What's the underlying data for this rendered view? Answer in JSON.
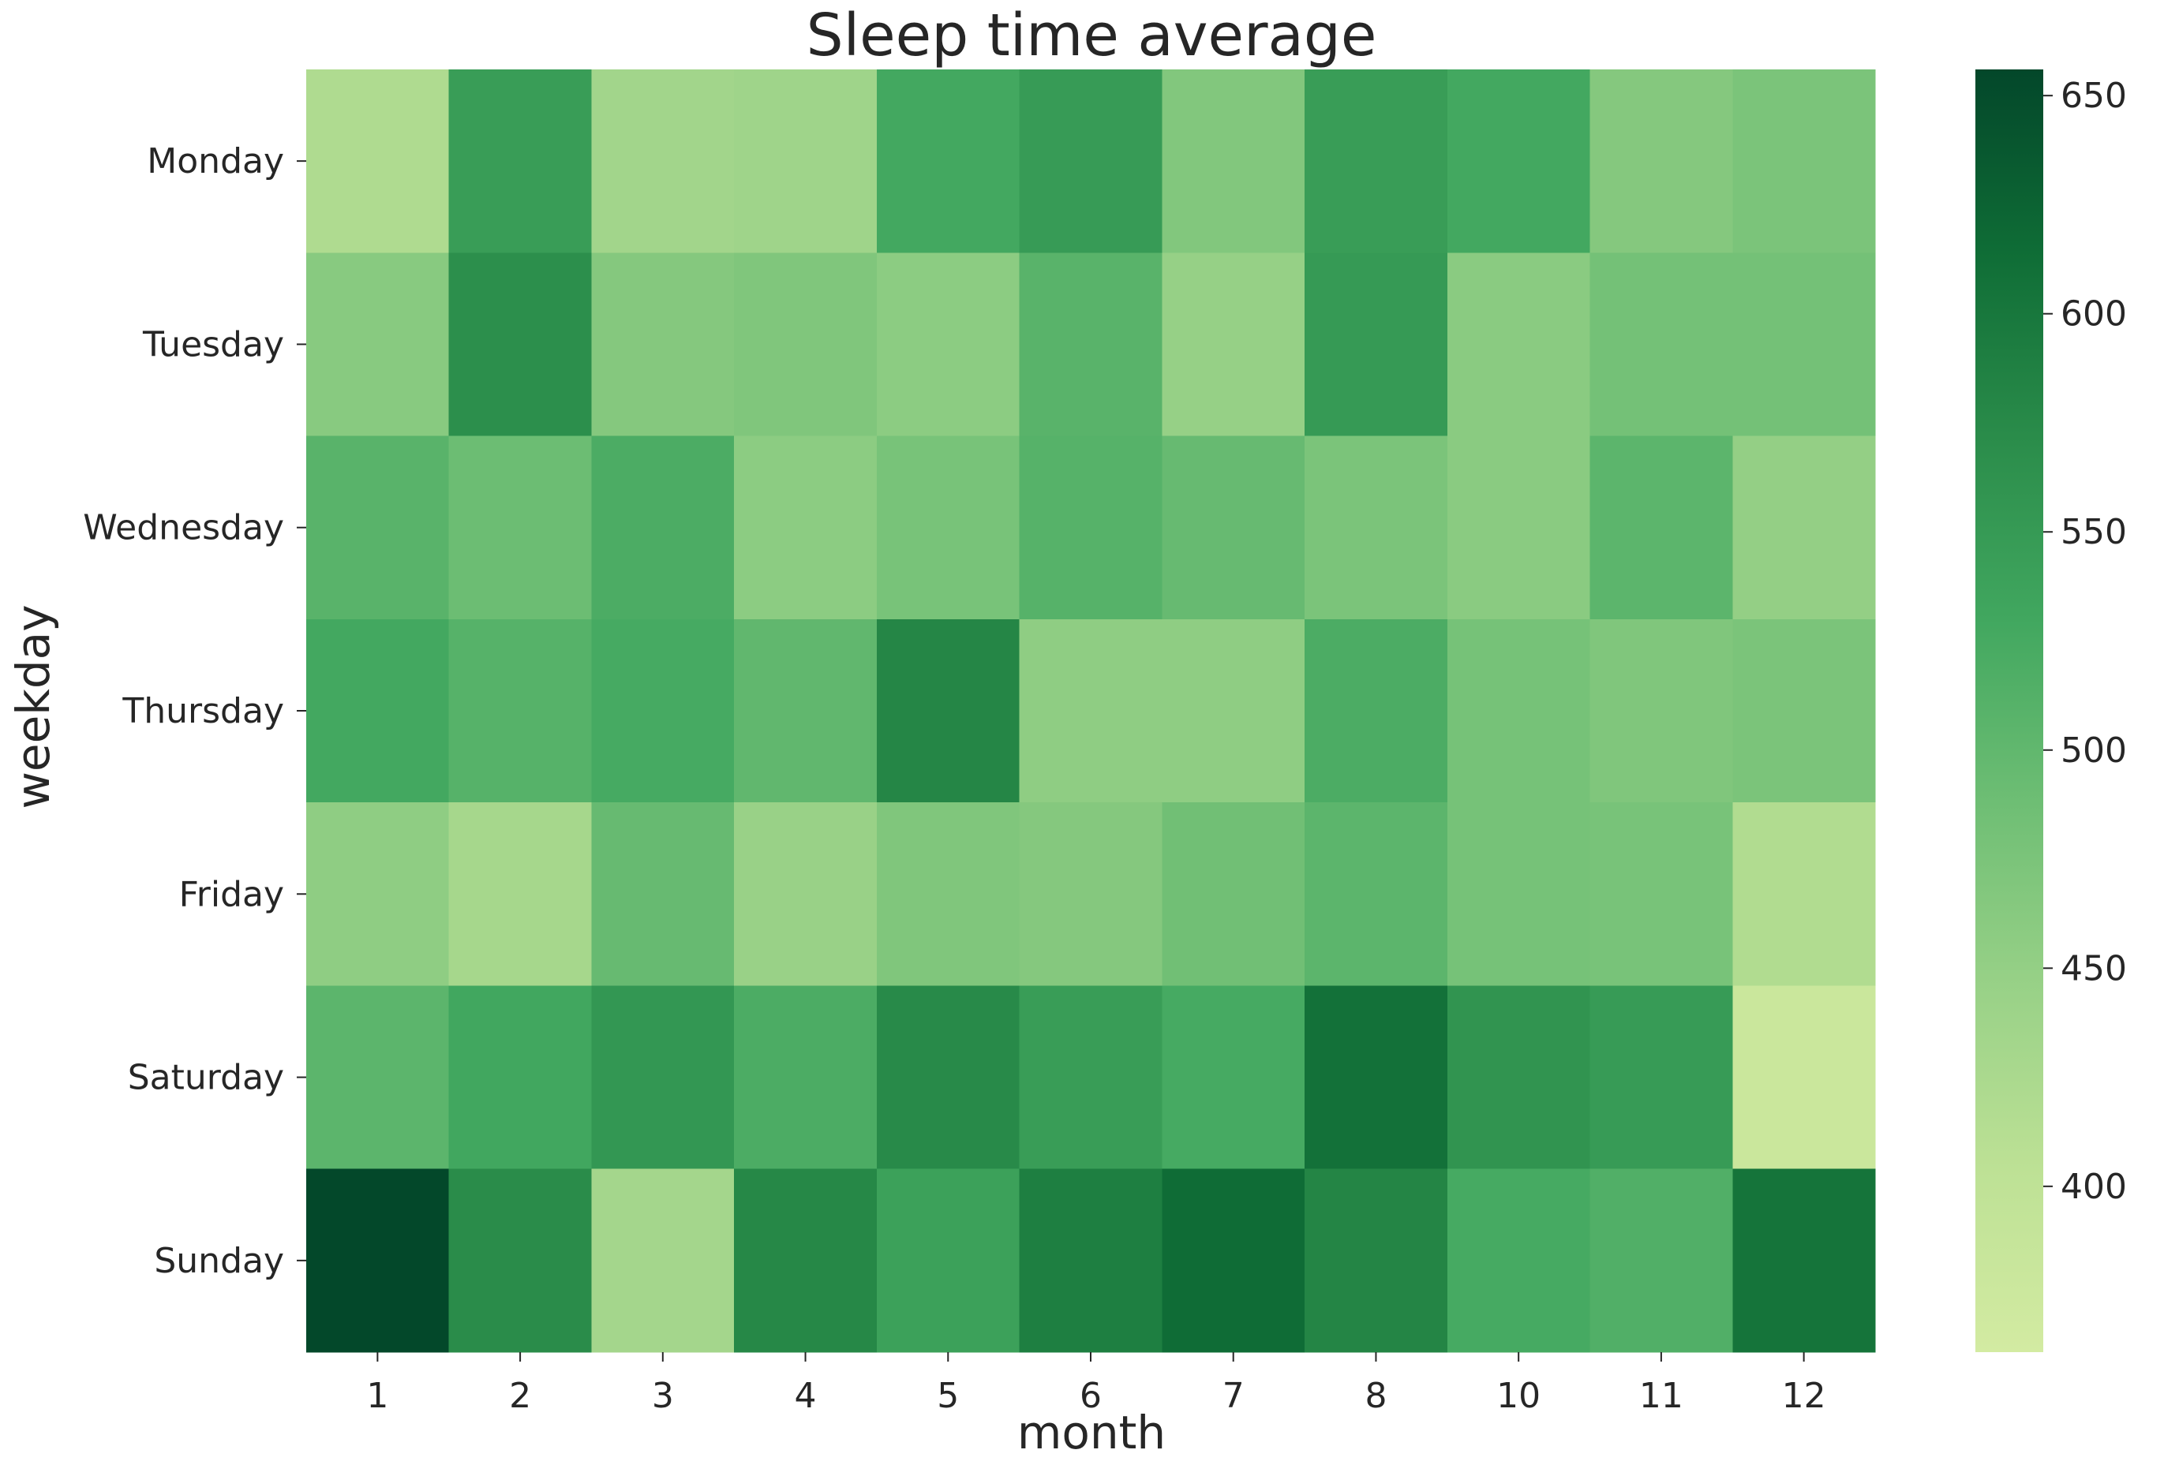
{
  "chart_data": {
    "type": "heatmap",
    "title": "Sleep time average",
    "xlabel": "month",
    "ylabel": "weekday",
    "x_categories": [
      "1",
      "2",
      "3",
      "4",
      "5",
      "6",
      "7",
      "8",
      "10",
      "11",
      "12"
    ],
    "y_categories": [
      "Monday",
      "Tuesday",
      "Wednesday",
      "Thursday",
      "Friday",
      "Saturday",
      "Sunday"
    ],
    "values": [
      [
        420,
        545,
        435,
        438,
        528,
        548,
        468,
        545,
        528,
        465,
        475
      ],
      [
        462,
        568,
        465,
        470,
        458,
        508,
        448,
        550,
        460,
        482,
        482
      ],
      [
        508,
        490,
        520,
        458,
        478,
        510,
        495,
        475,
        460,
        505,
        450
      ],
      [
        528,
        510,
        525,
        500,
        580,
        455,
        455,
        520,
        480,
        470,
        475
      ],
      [
        455,
        430,
        495,
        445,
        470,
        465,
        485,
        505,
        480,
        478,
        418
      ],
      [
        505,
        530,
        555,
        520,
        575,
        545,
        525,
        608,
        560,
        548,
        380
      ],
      [
        655,
        572,
        432,
        578,
        540,
        590,
        615,
        582,
        525,
        515,
        605
      ]
    ],
    "colorbar": {
      "min": 362,
      "max": 656,
      "ticks": [
        400,
        450,
        500,
        550,
        600,
        650
      ],
      "colormap": "Greens",
      "colors": [
        "#d3eba2",
        "#bde195",
        "#98d187",
        "#6ebe74",
        "#41a75f",
        "#2a8c4a",
        "#0f6d36",
        "#03472a"
      ]
    },
    "grid": false,
    "legend": "colorbar-right"
  }
}
